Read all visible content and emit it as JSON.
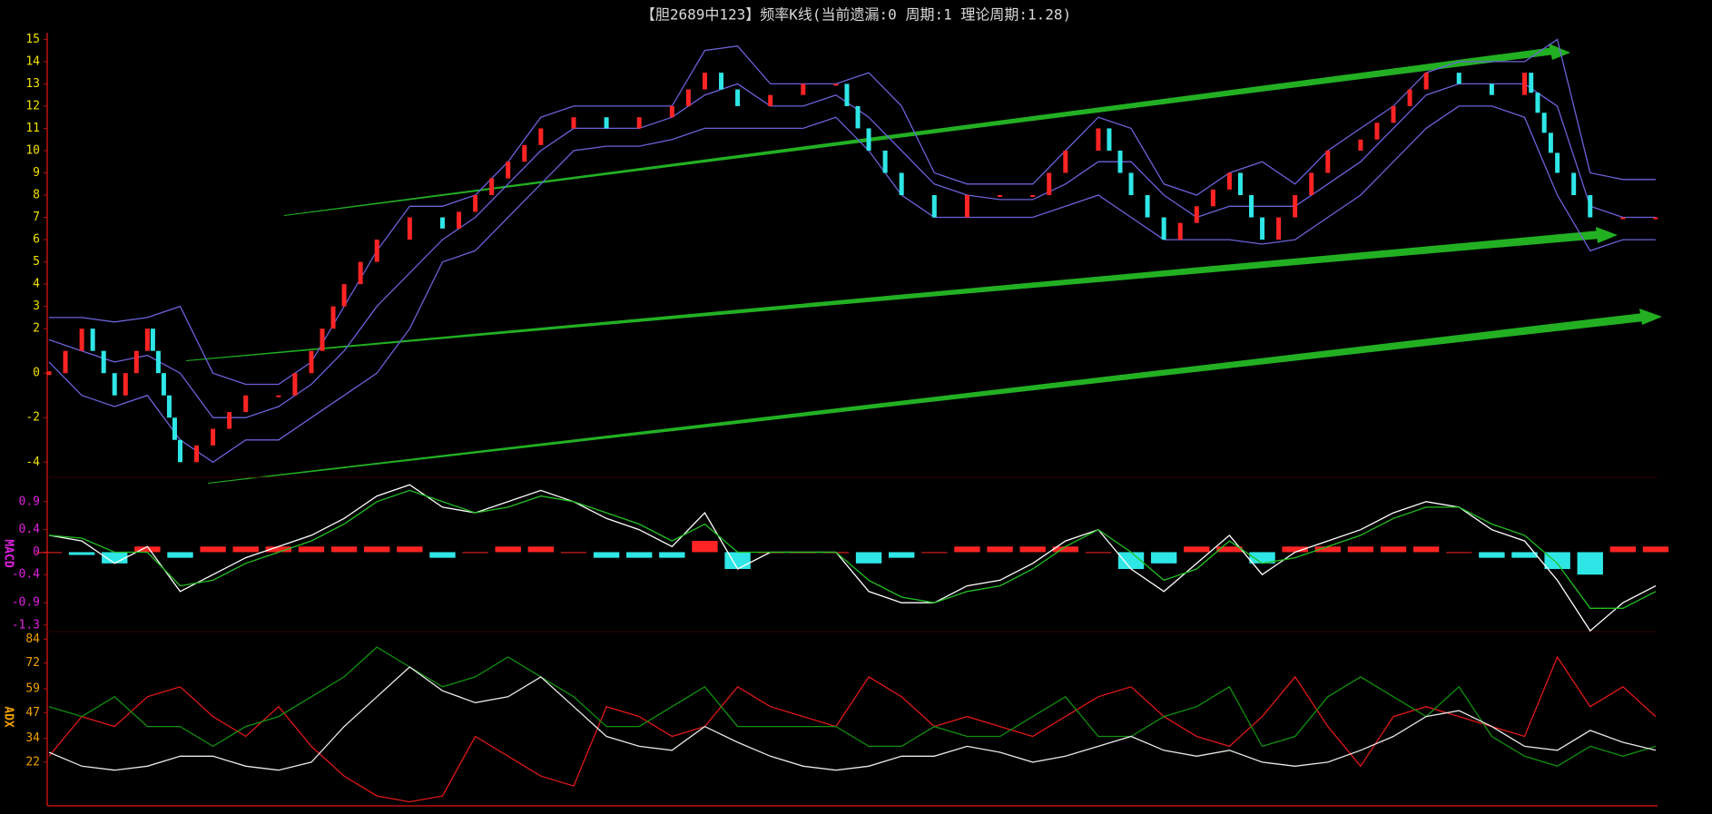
{
  "chart_data": [
    {
      "type": "kline",
      "title": "【胆2689中123】频率K线(当前遗漏:0 周期:1 理论周期:1.28)",
      "up_color": "#ff2424",
      "down_color": "#2fe6e6",
      "tick_color": "#f0e000",
      "ylim": [
        -4.6,
        15.3
      ],
      "yticks": [
        15,
        14,
        13,
        12,
        11,
        10,
        9,
        8,
        7,
        6,
        5,
        4,
        3,
        2,
        0,
        -2,
        -4
      ],
      "values": [
        0,
        2,
        -1,
        2,
        -4,
        -2.5,
        -1,
        -1,
        1,
        4,
        6,
        7,
        6.5,
        8,
        9.5,
        11,
        11.5,
        11,
        11.5,
        12,
        13.5,
        12,
        12.5,
        13,
        13,
        10,
        8,
        7,
        8,
        8,
        8,
        10,
        11,
        8,
        6,
        7.5,
        9,
        6,
        8,
        10,
        10.5,
        12,
        13.5,
        13,
        12.5,
        13.5,
        9,
        7,
        7,
        7
      ],
      "series": [
        {
          "color": "#6b62d8",
          "values": [
            2.5,
            2.5,
            2.3,
            2.5,
            3,
            0,
            -0.5,
            -0.5,
            0.5,
            3,
            5.5,
            7.5,
            7.5,
            8,
            9.5,
            11.5,
            12,
            12,
            12,
            12,
            14.5,
            14.7,
            13,
            13,
            13,
            13.5,
            12,
            9,
            8.5,
            8.5,
            8.5,
            10,
            11.5,
            11,
            8.5,
            8,
            9,
            9.5,
            8.5,
            10,
            11,
            12,
            13.5,
            14,
            14,
            14,
            15,
            9,
            8.7,
            8.7
          ]
        },
        {
          "color": "#6b62d8",
          "values": [
            1.5,
            1,
            0.5,
            0.8,
            0,
            -2,
            -2,
            -1.5,
            -0.5,
            1,
            3,
            4.5,
            6,
            7,
            8.5,
            10,
            11,
            11,
            11,
            11.5,
            12.5,
            13,
            12,
            12,
            12.5,
            11.5,
            10,
            8.5,
            8,
            7.8,
            7.8,
            8.5,
            9.5,
            9.5,
            8,
            7,
            7.5,
            7.5,
            7.5,
            8.5,
            9.5,
            11,
            12.5,
            13,
            13,
            13,
            12,
            7.5,
            7,
            7
          ]
        },
        {
          "color": "#6b62d8",
          "values": [
            0.5,
            -1,
            -1.5,
            -1,
            -3,
            -4,
            -3,
            -3,
            -2,
            -1,
            0,
            2,
            5,
            5.5,
            7,
            8.5,
            10,
            10.2,
            10.2,
            10.5,
            11,
            11,
            11,
            11,
            11.5,
            10,
            8,
            7,
            7,
            7,
            7,
            7.5,
            8,
            7,
            6,
            6,
            6,
            5.8,
            6,
            7,
            8,
            9.5,
            11,
            12,
            12,
            11.5,
            8,
            5.5,
            6,
            6
          ]
        }
      ]
    },
    {
      "type": "macd",
      "label": "MACD",
      "tick_color": "#e020e0",
      "ylim": [
        -1.35,
        1.3
      ],
      "yticks": [
        0.9,
        0.4,
        0,
        -0.4,
        -0.9,
        -1.3
      ],
      "series": [
        {
          "color": "#ffffff",
          "values": [
            0.3,
            0.2,
            -0.2,
            0.1,
            -0.7,
            -0.4,
            -0.1,
            0.1,
            0.3,
            0.6,
            1.0,
            1.2,
            0.8,
            0.7,
            0.9,
            1.1,
            0.9,
            0.6,
            0.4,
            0.1,
            0.7,
            -0.3,
            0,
            0,
            0,
            -0.7,
            -0.9,
            -0.9,
            -0.6,
            -0.5,
            -0.2,
            0.2,
            0.4,
            -0.3,
            -0.7,
            -0.2,
            0.3,
            -0.4,
            0,
            0.2,
            0.4,
            0.7,
            0.9,
            0.8,
            0.4,
            0.2,
            -0.5,
            -1.4,
            -0.9,
            -0.6
          ]
        },
        {
          "color": "#20c020",
          "values": [
            0.3,
            0.25,
            0,
            0,
            -0.6,
            -0.5,
            -0.2,
            0,
            0.2,
            0.5,
            0.9,
            1.1,
            0.9,
            0.7,
            0.8,
            1.0,
            0.9,
            0.7,
            0.5,
            0.2,
            0.5,
            0,
            0,
            0,
            0,
            -0.5,
            -0.8,
            -0.9,
            -0.7,
            -0.6,
            -0.3,
            0.1,
            0.4,
            0,
            -0.5,
            -0.3,
            0.2,
            -0.2,
            -0.1,
            0.1,
            0.3,
            0.6,
            0.8,
            0.8,
            0.5,
            0.3,
            -0.2,
            -1.0,
            -1.0,
            -0.7
          ]
        }
      ],
      "histogram": {
        "up_color": "#ff2424",
        "down_color": "#2fe6e6",
        "values": [
          0,
          -0.05,
          -0.2,
          0.1,
          -0.1,
          0.1,
          0.1,
          0.1,
          0.1,
          0.1,
          0.1,
          0.1,
          -0.1,
          0,
          0.1,
          0.1,
          0,
          -0.1,
          -0.1,
          -0.1,
          0.2,
          -0.3,
          0,
          0,
          0,
          -0.2,
          -0.1,
          0,
          0.1,
          0.1,
          0.1,
          0.1,
          0,
          -0.3,
          -0.2,
          0.1,
          0.1,
          -0.2,
          0.1,
          0.1,
          0.1,
          0.1,
          0.1,
          0,
          -0.1,
          -0.1,
          -0.3,
          -0.4,
          0.1,
          0.1
        ]
      }
    },
    {
      "type": "line",
      "label": "ADX",
      "tick_color": "#f0a000",
      "ylim": [
        0,
        86
      ],
      "yticks": [
        84,
        72,
        59,
        47,
        34,
        22
      ],
      "series": [
        {
          "color": "#e01818",
          "values": [
            25,
            45,
            40,
            55,
            60,
            45,
            35,
            50,
            30,
            15,
            5,
            2,
            5,
            35,
            25,
            15,
            10,
            50,
            45,
            35,
            40,
            60,
            50,
            45,
            40,
            65,
            55,
            40,
            45,
            40,
            35,
            45,
            55,
            60,
            45,
            35,
            30,
            45,
            65,
            40,
            20,
            45,
            50,
            45,
            40,
            35,
            75,
            50,
            60,
            45
          ]
        },
        {
          "color": "#109010",
          "values": [
            50,
            45,
            55,
            40,
            40,
            30,
            40,
            45,
            55,
            65,
            80,
            70,
            60,
            65,
            75,
            65,
            55,
            40,
            40,
            50,
            60,
            40,
            40,
            40,
            40,
            30,
            30,
            40,
            35,
            35,
            45,
            55,
            35,
            35,
            45,
            50,
            60,
            30,
            35,
            55,
            65,
            55,
            45,
            60,
            35,
            25,
            20,
            30,
            25,
            30
          ]
        },
        {
          "color": "#e8e8e8",
          "values": [
            27,
            20,
            18,
            20,
            25,
            25,
            20,
            18,
            22,
            40,
            55,
            70,
            58,
            52,
            55,
            65,
            50,
            35,
            30,
            28,
            40,
            32,
            25,
            20,
            18,
            20,
            25,
            25,
            30,
            27,
            22,
            25,
            30,
            35,
            28,
            25,
            28,
            22,
            20,
            22,
            28,
            35,
            45,
            48,
            40,
            30,
            28,
            38,
            32,
            28
          ]
        }
      ]
    }
  ]
}
